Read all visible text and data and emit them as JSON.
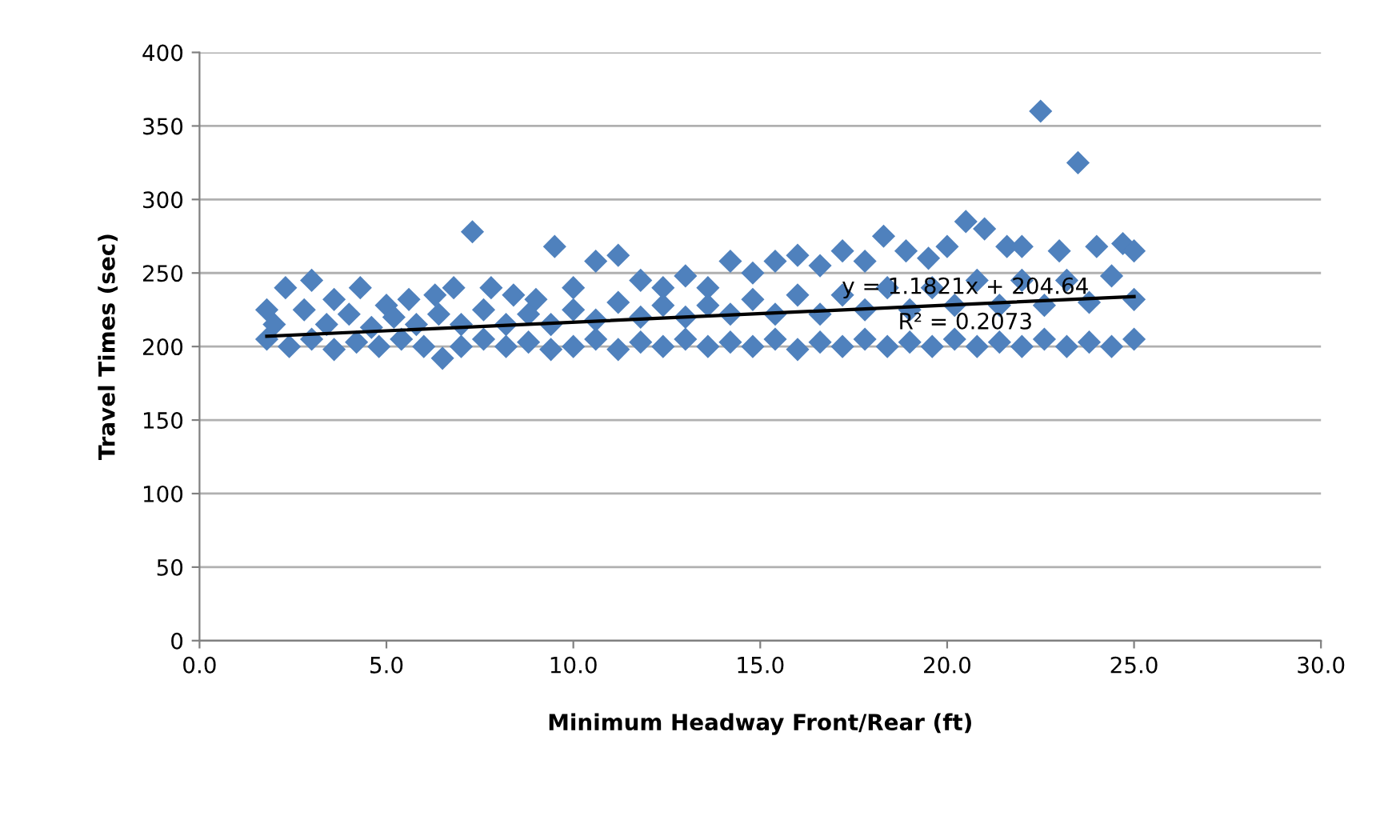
{
  "chart_data": {
    "type": "scatter",
    "xlabel": "Minimum Headway Front/Rear (ft)",
    "ylabel": "Travel Times (sec)",
    "series": [
      {
        "color": "#4f81bd",
        "marker": "diamond",
        "x": [
          1.8,
          2.3,
          3.0,
          3.6,
          4.3,
          5.0,
          5.6,
          6.3,
          6.8,
          7.3,
          7.8,
          8.4,
          9.0,
          9.5,
          10.0,
          10.6,
          11.2,
          11.8,
          12.4,
          13.0,
          13.6,
          14.2,
          14.8,
          15.4,
          16.0,
          16.6,
          17.2,
          17.8,
          18.3,
          18.9,
          19.5,
          20.0,
          20.5,
          21.0,
          21.6,
          22.0,
          22.5,
          23.0,
          23.5,
          24.0,
          24.7,
          25.0,
          1.8,
          2.4,
          3.0,
          3.6,
          4.2,
          4.8,
          5.4,
          6.0,
          6.5,
          7.0,
          7.6,
          8.2,
          8.8,
          9.4,
          10.0,
          10.6,
          11.2,
          11.8,
          12.4,
          13.0,
          13.6,
          14.2,
          14.8,
          15.4,
          16.0,
          16.6,
          17.2,
          17.8,
          18.4,
          19.0,
          19.6,
          20.2,
          20.8,
          21.4,
          22.0,
          22.6,
          23.2,
          23.8,
          24.4,
          25.0,
          2.0,
          2.8,
          3.4,
          4.0,
          4.6,
          5.2,
          5.8,
          6.4,
          7.0,
          7.6,
          8.2,
          8.8,
          9.4,
          10.0,
          10.6,
          11.2,
          11.8,
          12.4,
          13.0,
          13.6,
          14.2,
          14.8,
          15.4,
          16.0,
          16.6,
          17.2,
          17.8,
          18.4,
          19.0,
          19.6,
          20.2,
          20.8,
          21.4,
          22.0,
          22.6,
          23.2,
          23.8,
          24.4,
          25.0
        ],
        "values": [
          225,
          240,
          245,
          232,
          240,
          228,
          232,
          235,
          240,
          278,
          240,
          235,
          232,
          268,
          240,
          258,
          262,
          245,
          240,
          248,
          240,
          258,
          250,
          258,
          262,
          255,
          265,
          258,
          275,
          265,
          260,
          268,
          285,
          280,
          268,
          268,
          360,
          265,
          325,
          268,
          270,
          265,
          205,
          200,
          205,
          198,
          203,
          200,
          205,
          200,
          192,
          200,
          205,
          200,
          203,
          198,
          200,
          205,
          198,
          203,
          200,
          205,
          200,
          203,
          200,
          205,
          198,
          203,
          200,
          205,
          200,
          203,
          200,
          205,
          200,
          203,
          200,
          205,
          200,
          203,
          200,
          205,
          215,
          225,
          215,
          222,
          213,
          220,
          215,
          222,
          215,
          225,
          215,
          222,
          215,
          225,
          218,
          230,
          220,
          228,
          220,
          228,
          222,
          232,
          222,
          235,
          222,
          235,
          225,
          240,
          225,
          240,
          228,
          245,
          228,
          245,
          228,
          245,
          230,
          248,
          232
        ]
      },
      {
        "type": "line",
        "color": "#000000",
        "x": [
          1.8,
          25.0
        ],
        "values": [
          207,
          234
        ]
      }
    ],
    "annotations": [
      "y = 1.1821x + 204.64",
      "R² = 0.2073"
    ],
    "xlim": [
      0,
      30
    ],
    "xticks": [
      {
        "value": 0,
        "label": "0.0"
      },
      {
        "value": 5,
        "label": "5.0"
      },
      {
        "value": 10,
        "label": "10.0"
      },
      {
        "value": 15,
        "label": "15.0"
      },
      {
        "value": 20,
        "label": "20.0"
      },
      {
        "value": 25,
        "label": "25.0"
      },
      {
        "value": 30,
        "label": "30.0"
      }
    ],
    "ylim": [
      0,
      400
    ],
    "yticks": [
      0,
      50,
      100,
      150,
      200,
      250,
      300,
      350,
      400
    ],
    "grid": "y"
  }
}
